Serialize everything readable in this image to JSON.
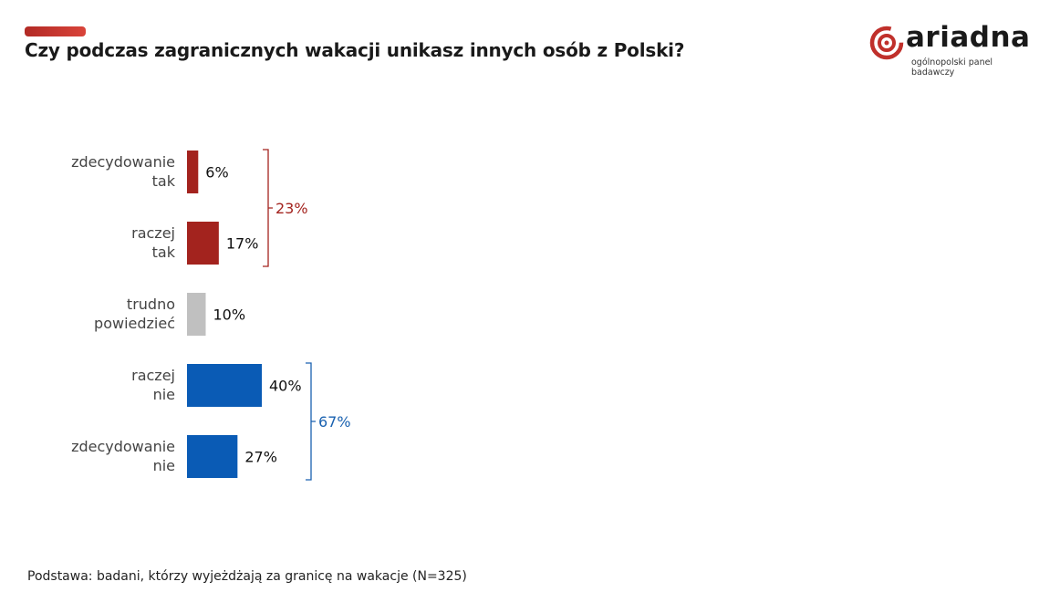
{
  "header": {
    "title": "Czy podczas zagranicznych wakacji unikasz innych osób z Polski?"
  },
  "logo": {
    "name": "ariadna",
    "tagline": "ogólnopolski panel badawczy",
    "color": "#c0302b"
  },
  "footer": {
    "note": "Podstawa: badani, którzy wyjeżdżają za granicę na wakacje (N=325)"
  },
  "chart_data": {
    "type": "bar",
    "orientation": "horizontal",
    "title": "Czy podczas zagranicznych wakacji unikasz innych osób z Polski?",
    "categories": [
      [
        "zdecydowanie",
        "tak"
      ],
      [
        "raczej",
        "tak"
      ],
      [
        "trudno",
        "powiedzieć"
      ],
      [
        "raczej",
        "nie"
      ],
      [
        "zdecydowanie",
        "nie"
      ]
    ],
    "values": [
      6,
      17,
      10,
      40,
      27
    ],
    "labels": [
      "6%",
      "17%",
      "10%",
      "40%",
      "27%"
    ],
    "colors": [
      "#a3231e",
      "#a3231e",
      "#c0c0c0",
      "#0a5bb5",
      "#0a5bb5"
    ],
    "unit": "%",
    "grid": false,
    "groups": [
      {
        "label": "23%",
        "from": 0,
        "to": 1,
        "color": "#a3231e"
      },
      {
        "label": "67%",
        "from": 3,
        "to": 4,
        "color": "#1a62b0"
      }
    ]
  }
}
